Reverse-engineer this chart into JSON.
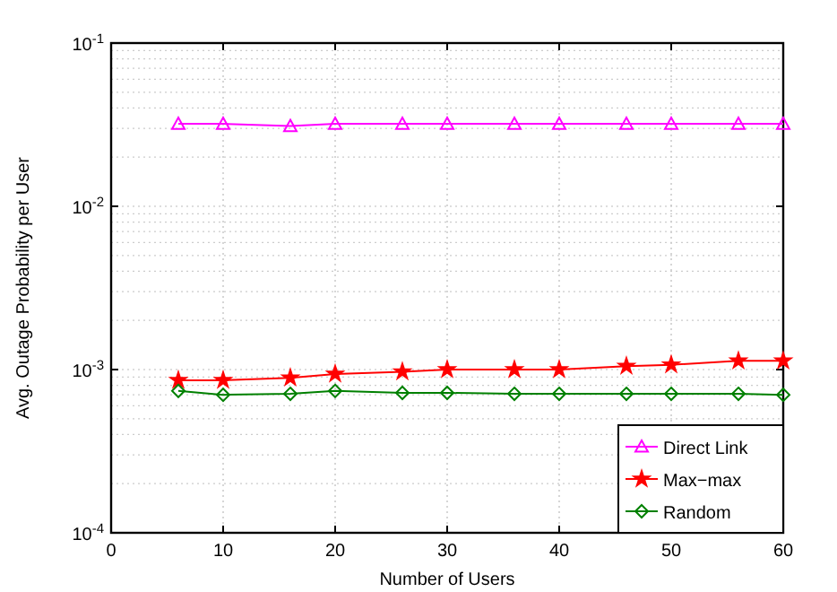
{
  "chart_data": {
    "type": "line",
    "xlabel": "Number of Users",
    "ylabel": "Avg. Outage Probability per User",
    "x": [
      6,
      10,
      16,
      20,
      26,
      30,
      36,
      40,
      46,
      50,
      56,
      60
    ],
    "series": [
      {
        "name": "Direct Link",
        "color": "#ff00ff",
        "marker": "triangle",
        "values": [
          0.032,
          0.032,
          0.031,
          0.032,
          0.032,
          0.032,
          0.032,
          0.032,
          0.032,
          0.032,
          0.032,
          0.032
        ]
      },
      {
        "name": "Max−max",
        "color": "#ff0000",
        "marker": "star",
        "values": [
          0.00086,
          0.00086,
          0.00089,
          0.00094,
          0.00097,
          0.001,
          0.001,
          0.001,
          0.00105,
          0.00107,
          0.00113,
          0.00113
        ]
      },
      {
        "name": "Random",
        "color": "#008000",
        "marker": "diamond",
        "values": [
          0.00074,
          0.0007,
          0.00071,
          0.00074,
          0.00072,
          0.00072,
          0.00071,
          0.00071,
          0.00071,
          0.00071,
          0.00071,
          0.0007
        ]
      }
    ],
    "xlim": [
      0,
      60
    ],
    "xticks": [
      0,
      10,
      20,
      30,
      40,
      50,
      60
    ],
    "ylim": [
      0.0001,
      0.1
    ],
    "yticks": [
      {
        "value": 0.0001,
        "label": "10$^{-4}$"
      },
      {
        "value": 0.001,
        "label": "10$^{-3}$"
      },
      {
        "value": 0.01,
        "label": "10$^{-2}$"
      },
      {
        "value": 0.1,
        "label": "10$^{-1}$"
      }
    ],
    "log": "y",
    "grid": true,
    "legend": "bottom right",
    "line_style": "solid"
  }
}
